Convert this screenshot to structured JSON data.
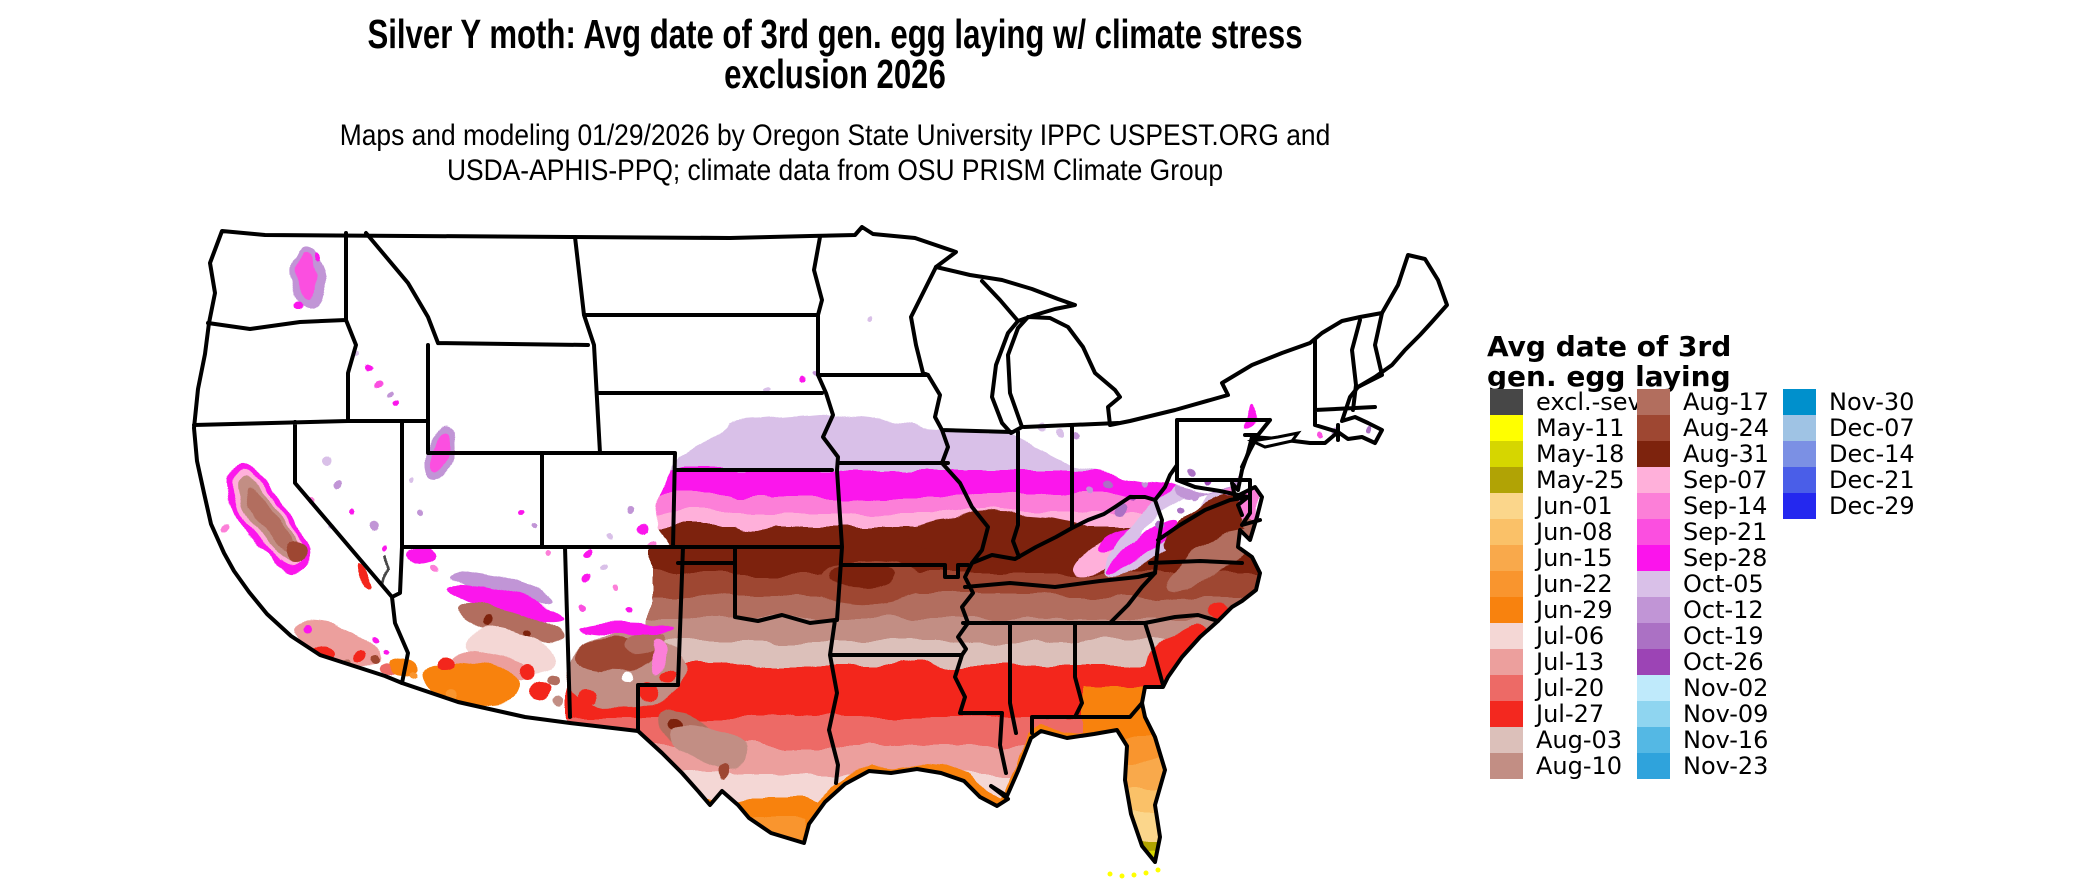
{
  "title": {
    "line1": "Silver Y moth: Avg date of 3rd gen. egg laying w/ climate stress",
    "line2": "exclusion 2026"
  },
  "subtitle": {
    "line1": "Maps and modeling 01/29/2026 by Oregon State University IPPC USPEST.ORG and",
    "line2": "USDA-APHIS-PPQ; climate data from OSU PRISM Climate Group"
  },
  "map": {
    "region": "Conterminous United States",
    "no_data_color": "#ffffff",
    "state_border_color": "#000000"
  },
  "legend": {
    "title_line1": "Avg date of 3rd",
    "title_line2": "gen. egg laying",
    "columns": [
      [
        {
          "label": "excl.-sev.",
          "color": "#474747"
        },
        {
          "label": "May-11",
          "color": "#ffff00"
        },
        {
          "label": "May-18",
          "color": "#d6d600"
        },
        {
          "label": "May-25",
          "color": "#b1a305"
        },
        {
          "label": "Jun-01",
          "color": "#fbd68b"
        },
        {
          "label": "Jun-08",
          "color": "#fac168"
        },
        {
          "label": "Jun-15",
          "color": "#f9a94b"
        },
        {
          "label": "Jun-22",
          "color": "#f9952e"
        },
        {
          "label": "Jun-29",
          "color": "#f8820e"
        },
        {
          "label": "Jul-06",
          "color": "#f4d7d5"
        },
        {
          "label": "Jul-13",
          "color": "#ec9f9d"
        },
        {
          "label": "Jul-20",
          "color": "#ed6a66"
        },
        {
          "label": "Jul-27",
          "color": "#f3281f"
        },
        {
          "label": "Aug-03",
          "color": "#dcc0ba"
        },
        {
          "label": "Aug-10",
          "color": "#c28e84"
        }
      ],
      [
        {
          "label": "Aug-17",
          "color": "#b26e5e"
        },
        {
          "label": "Aug-24",
          "color": "#9e4732"
        },
        {
          "label": "Aug-31",
          "color": "#7d230d"
        },
        {
          "label": "Sep-07",
          "color": "#ffb0da"
        },
        {
          "label": "Sep-14",
          "color": "#fc7fd8"
        },
        {
          "label": "Sep-21",
          "color": "#fb4fe0"
        },
        {
          "label": "Sep-28",
          "color": "#fb14ec"
        },
        {
          "label": "Oct-05",
          "color": "#d9c0e8"
        },
        {
          "label": "Oct-12",
          "color": "#c195d6"
        },
        {
          "label": "Oct-19",
          "color": "#ab71c4"
        },
        {
          "label": "Oct-26",
          "color": "#9c44b5"
        },
        {
          "label": "Nov-02",
          "color": "#bfeafb"
        },
        {
          "label": "Nov-09",
          "color": "#8fd5f0"
        },
        {
          "label": "Nov-16",
          "color": "#54b8e4"
        },
        {
          "label": "Nov-23",
          "color": "#2fa3dc"
        }
      ],
      [
        {
          "label": "Nov-30",
          "color": "#0090cc"
        },
        {
          "label": "Dec-07",
          "color": "#9fc3e4"
        },
        {
          "label": "Dec-14",
          "color": "#7b90e4"
        },
        {
          "label": "Dec-21",
          "color": "#4a5ee8"
        },
        {
          "label": "Dec-29",
          "color": "#2428ef"
        }
      ]
    ]
  },
  "palette": {
    "excl.-sev.": "#474747",
    "May-11": "#ffff00",
    "May-18": "#d6d600",
    "May-25": "#b1a305",
    "Jun-01": "#fbd68b",
    "Jun-08": "#fac168",
    "Jun-15": "#f9a94b",
    "Jun-22": "#f9952e",
    "Jun-29": "#f8820e",
    "Jul-06": "#f4d7d5",
    "Jul-13": "#ec9f9d",
    "Jul-20": "#ed6a66",
    "Jul-27": "#f3281f",
    "Aug-03": "#dcc0ba",
    "Aug-10": "#c28e84",
    "Aug-17": "#b26e5e",
    "Aug-24": "#9e4732",
    "Aug-31": "#7d230d",
    "Sep-07": "#ffb0da",
    "Sep-14": "#fc7fd8",
    "Sep-21": "#fb4fe0",
    "Sep-28": "#fb14ec",
    "Oct-05": "#d9c0e8",
    "Oct-12": "#c195d6",
    "Oct-19": "#ab71c4",
    "Oct-26": "#9c44b5",
    "Nov-02": "#bfeafb",
    "Nov-09": "#8fd5f0",
    "Nov-16": "#54b8e4",
    "Nov-23": "#2fa3dc",
    "Nov-30": "#0090cc",
    "Dec-07": "#9fc3e4",
    "Dec-14": "#7b90e4",
    "Dec-21": "#4a5ee8",
    "Dec-29": "#2428ef"
  },
  "chart_data": {
    "type": "choropleth_map",
    "title": "Silver Y moth: Avg date of 3rd gen. egg laying w/ climate stress exclusion 2026",
    "region": "Conterminous United States (lower 48 states)",
    "variable": "Average date of 3rd generation egg laying (weekly date classes)",
    "classes": [
      {
        "label": "excl.-sev.",
        "color": "#474747"
      },
      {
        "label": "May-11",
        "color": "#ffff00"
      },
      {
        "label": "May-18",
        "color": "#d6d600"
      },
      {
        "label": "May-25",
        "color": "#b1a305"
      },
      {
        "label": "Jun-01",
        "color": "#fbd68b"
      },
      {
        "label": "Jun-08",
        "color": "#fac168"
      },
      {
        "label": "Jun-15",
        "color": "#f9a94b"
      },
      {
        "label": "Jun-22",
        "color": "#f9952e"
      },
      {
        "label": "Jun-29",
        "color": "#f8820e"
      },
      {
        "label": "Jul-06",
        "color": "#f4d7d5"
      },
      {
        "label": "Jul-13",
        "color": "#ec9f9d"
      },
      {
        "label": "Jul-20",
        "color": "#ed6a66"
      },
      {
        "label": "Jul-27",
        "color": "#f3281f"
      },
      {
        "label": "Aug-03",
        "color": "#dcc0ba"
      },
      {
        "label": "Aug-10",
        "color": "#c28e84"
      },
      {
        "label": "Aug-17",
        "color": "#b26e5e"
      },
      {
        "label": "Aug-24",
        "color": "#9e4732"
      },
      {
        "label": "Aug-31",
        "color": "#7d230d"
      },
      {
        "label": "Sep-07",
        "color": "#ffb0da"
      },
      {
        "label": "Sep-14",
        "color": "#fc7fd8"
      },
      {
        "label": "Sep-21",
        "color": "#fb4fe0"
      },
      {
        "label": "Sep-28",
        "color": "#fb14ec"
      },
      {
        "label": "Oct-05",
        "color": "#d9c0e8"
      },
      {
        "label": "Oct-12",
        "color": "#c195d6"
      },
      {
        "label": "Oct-19",
        "color": "#ab71c4"
      },
      {
        "label": "Oct-26",
        "color": "#9c44b5"
      },
      {
        "label": "Nov-02",
        "color": "#bfeafb"
      },
      {
        "label": "Nov-09",
        "color": "#8fd5f0"
      },
      {
        "label": "Nov-16",
        "color": "#54b8e4"
      },
      {
        "label": "Nov-23",
        "color": "#2fa3dc"
      },
      {
        "label": "Nov-30",
        "color": "#0090cc"
      },
      {
        "label": "Dec-07",
        "color": "#9fc3e4"
      },
      {
        "label": "Dec-14",
        "color": "#7b90e4"
      },
      {
        "label": "Dec-21",
        "color": "#4a5ee8"
      },
      {
        "label": "Dec-29",
        "color": "#2428ef"
      }
    ],
    "spatial_pattern": "White (no 3rd generation) across the northern tier and interior West; latitudinal bands going south: lavender (Oct) then magenta/pink (Sep) through NE-IA-IL-IN-OH, dark brown (late Aug) through KS-MO-KY-TN-VA, rosy browns (mid Aug) through OK-AR-TN-NC, reds (late Jul) through central TX and the Gulf states, salmon/pale pink (early-mid Jul), orange (late Jun) along the Gulf Coast and north FL, peach (early Jun) in south TX and central FL, olive/yellow (May) at the south FL tip and Keys. California's Central Valley shows browns ringed by pink/magenta with cyan coastal specks; Arizona has an orange SW desert with pale pink, red, brown, magenta and lavender mountain fringes; scattered magenta/lavender patches across NV, UT, NM, CO and eastern WA."
  }
}
